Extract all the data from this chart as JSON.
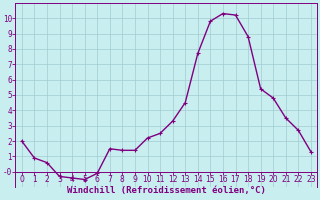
{
  "x": [
    0,
    1,
    2,
    3,
    4,
    5,
    6,
    7,
    8,
    9,
    10,
    11,
    12,
    13,
    14,
    15,
    16,
    17,
    18,
    19,
    20,
    21,
    22,
    23
  ],
  "y": [
    2.0,
    0.9,
    0.6,
    -0.3,
    -0.4,
    -0.5,
    -0.1,
    1.5,
    1.4,
    1.4,
    2.2,
    2.5,
    3.3,
    4.5,
    7.7,
    9.8,
    10.3,
    10.2,
    8.8,
    5.4,
    4.8,
    3.5,
    2.7,
    1.3
  ],
  "line_color": "#800080",
  "marker": "+",
  "marker_size": 3,
  "bg_color": "#c8eef0",
  "grid_color": "#a0ccd0",
  "xlabel": "Windchill (Refroidissement éolien,°C)",
  "xlim": [
    -0.5,
    23.5
  ],
  "ylim": [
    -1.0,
    11.0
  ],
  "xticks": [
    0,
    1,
    2,
    3,
    4,
    5,
    6,
    7,
    8,
    9,
    10,
    11,
    12,
    13,
    14,
    15,
    16,
    17,
    18,
    19,
    20,
    21,
    22,
    23
  ],
  "yticks": [
    0,
    1,
    2,
    3,
    4,
    5,
    6,
    7,
    8,
    9,
    10
  ],
  "ytick_labels": [
    "-0",
    "1",
    "2",
    "3",
    "4",
    "5",
    "6",
    "7",
    "8",
    "9",
    "10"
  ],
  "tick_color": "#800080",
  "label_color": "#800080",
  "axis_label_fontsize": 6.5,
  "tick_fontsize": 5.5,
  "line_width": 1.0,
  "spine_color": "#800080"
}
